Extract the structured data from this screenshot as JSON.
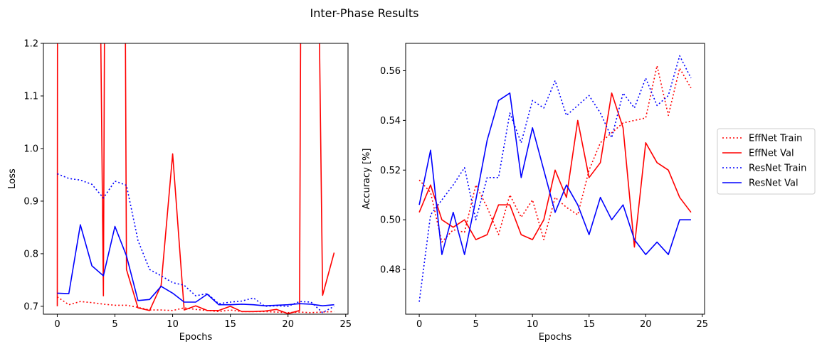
{
  "figure": {
    "title": "Inter-Phase Results"
  },
  "legend": {
    "location": "right",
    "entries": [
      {
        "name": "EffNet Train",
        "color": "#ff0000",
        "style": "dotted"
      },
      {
        "name": "EffNet Val",
        "color": "#ff0000",
        "style": "solid"
      },
      {
        "name": "ResNet Train",
        "color": "#0000ff",
        "style": "dotted"
      },
      {
        "name": "ResNet Val",
        "color": "#0000ff",
        "style": "solid"
      }
    ]
  },
  "chart_data": [
    {
      "type": "line",
      "xlabel": "Epochs",
      "ylabel": "Loss",
      "xlim": [
        -1.2,
        25.2
      ],
      "ylim": [
        0.685,
        1.2
      ],
      "xticks": [
        0,
        5,
        10,
        15,
        20,
        25
      ],
      "yticks": [
        0.7,
        0.8,
        0.9,
        1.0,
        1.1,
        1.2
      ],
      "ytick_labels": [
        "0.7",
        "0.8",
        "0.9",
        "1.0",
        "1.1",
        "1.2"
      ],
      "x": [
        0,
        1,
        2,
        3,
        4,
        5,
        6,
        7,
        8,
        9,
        10,
        11,
        12,
        13,
        14,
        15,
        16,
        17,
        18,
        19,
        20,
        21,
        22,
        23,
        24
      ],
      "series": [
        {
          "name": "EffNet Train",
          "color": "#ff0000",
          "style": "dotted",
          "values": [
            0.718,
            0.703,
            0.709,
            0.707,
            0.704,
            0.702,
            0.702,
            0.698,
            0.693,
            0.693,
            0.692,
            0.697,
            0.694,
            0.692,
            0.69,
            0.693,
            0.69,
            0.69,
            0.69,
            0.689,
            0.688,
            0.689,
            0.688,
            0.689,
            0.69
          ]
        },
        {
          "name": "EffNet Val",
          "color": "#ff0000",
          "style": "solid",
          "x": [
            0,
            0.02,
            0.04,
            3.6,
            3.75,
            4,
            4.1,
            4.25,
            5.9,
            6,
            7,
            8,
            9,
            10,
            11,
            12,
            13,
            14,
            15,
            16,
            17,
            18,
            19,
            20,
            21,
            21.1,
            22.7,
            23,
            24
          ],
          "values": [
            0.7,
            1.25,
            1.25,
            1.25,
            1.25,
            0.72,
            1.25,
            1.25,
            1.25,
            0.77,
            0.697,
            0.692,
            0.74,
            0.99,
            0.693,
            0.701,
            0.692,
            0.692,
            0.7,
            0.69,
            0.69,
            0.691,
            0.694,
            0.686,
            0.692,
            1.25,
            1.25,
            0.721,
            0.802
          ]
        },
        {
          "name": "ResNet Train",
          "color": "#0000ff",
          "style": "dotted",
          "values": [
            0.952,
            0.943,
            0.94,
            0.932,
            0.906,
            0.938,
            0.93,
            0.825,
            0.77,
            0.758,
            0.745,
            0.74,
            0.72,
            0.724,
            0.705,
            0.708,
            0.71,
            0.716,
            0.7,
            0.701,
            0.7,
            0.709,
            0.708,
            0.688,
            0.7
          ]
        },
        {
          "name": "ResNet Val",
          "color": "#0000ff",
          "style": "solid",
          "values": [
            0.725,
            0.724,
            0.855,
            0.777,
            0.758,
            0.852,
            0.796,
            0.711,
            0.713,
            0.738,
            0.725,
            0.708,
            0.708,
            0.723,
            0.703,
            0.703,
            0.704,
            0.703,
            0.701,
            0.702,
            0.703,
            0.705,
            0.704,
            0.701,
            0.703
          ]
        }
      ]
    },
    {
      "type": "line",
      "xlabel": "Epochs",
      "ylabel": "Accuracy [%]",
      "xlim": [
        -1.2,
        25.2
      ],
      "ylim": [
        0.462,
        0.571
      ],
      "xticks": [
        0,
        5,
        10,
        15,
        20,
        25
      ],
      "yticks": [
        0.48,
        0.5,
        0.52,
        0.54,
        0.56
      ],
      "ytick_labels": [
        "0.48",
        "0.50",
        "0.52",
        "0.54",
        "0.56"
      ],
      "x": [
        0,
        1,
        2,
        3,
        4,
        5,
        6,
        7,
        8,
        9,
        10,
        11,
        12,
        13,
        14,
        15,
        16,
        17,
        18,
        19,
        20,
        21,
        22,
        23,
        24
      ],
      "series": [
        {
          "name": "EffNet Train",
          "color": "#ff0000",
          "style": "dotted",
          "values": [
            0.516,
            0.511,
            0.491,
            0.496,
            0.495,
            0.514,
            0.505,
            0.494,
            0.51,
            0.501,
            0.508,
            0.492,
            0.509,
            0.505,
            0.502,
            0.52,
            0.531,
            0.535,
            0.539,
            0.54,
            0.541,
            0.562,
            0.542,
            0.561,
            0.553
          ]
        },
        {
          "name": "EffNet Val",
          "color": "#ff0000",
          "style": "solid",
          "values": [
            0.503,
            0.514,
            0.5,
            0.497,
            0.5,
            0.492,
            0.494,
            0.506,
            0.506,
            0.494,
            0.492,
            0.5,
            0.52,
            0.509,
            0.54,
            0.517,
            0.523,
            0.551,
            0.537,
            0.489,
            0.531,
            0.523,
            0.52,
            0.509,
            0.503
          ]
        },
        {
          "name": "ResNet Train",
          "color": "#0000ff",
          "style": "dotted",
          "values": [
            0.467,
            0.502,
            0.508,
            0.514,
            0.521,
            0.5,
            0.517,
            0.517,
            0.543,
            0.531,
            0.548,
            0.545,
            0.556,
            0.542,
            0.546,
            0.55,
            0.543,
            0.533,
            0.551,
            0.545,
            0.557,
            0.546,
            0.55,
            0.566,
            0.557
          ]
        },
        {
          "name": "ResNet Val",
          "color": "#0000ff",
          "style": "solid",
          "values": [
            0.506,
            0.528,
            0.486,
            0.503,
            0.486,
            0.508,
            0.532,
            0.548,
            0.551,
            0.517,
            0.537,
            0.52,
            0.503,
            0.514,
            0.506,
            0.494,
            0.509,
            0.5,
            0.506,
            0.492,
            0.486,
            0.491,
            0.486,
            0.5,
            0.5
          ]
        }
      ]
    }
  ]
}
